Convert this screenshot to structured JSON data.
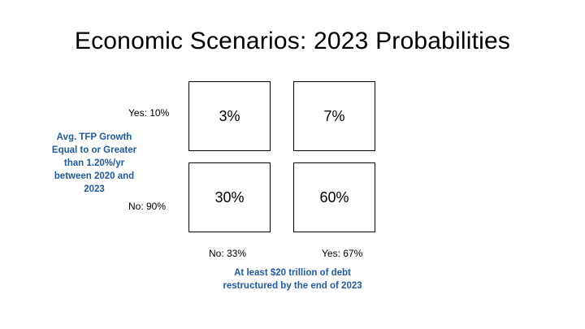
{
  "title": "Economic Scenarios: 2023 Probabilities",
  "row_labels": {
    "yes": "Yes:  10%",
    "no": "No: 90%"
  },
  "col_labels": {
    "no": "No: 33%",
    "yes": "Yes: 67%"
  },
  "cells": {
    "yes_no": "3%",
    "yes_yes": "7%",
    "no_no": "30%",
    "no_yes": "60%"
  },
  "y_axis_label": {
    "lines": [
      "Avg. TFP Growth",
      "Equal to or Greater",
      "than 1.20%/yr",
      "between 2020 and",
      "2023"
    ]
  },
  "x_axis_label": {
    "lines": [
      "At least $20 trillion of debt",
      "restructured by the end of 2023"
    ]
  },
  "colors": {
    "label_blue": "#1f5aa6",
    "border": "#000000"
  }
}
